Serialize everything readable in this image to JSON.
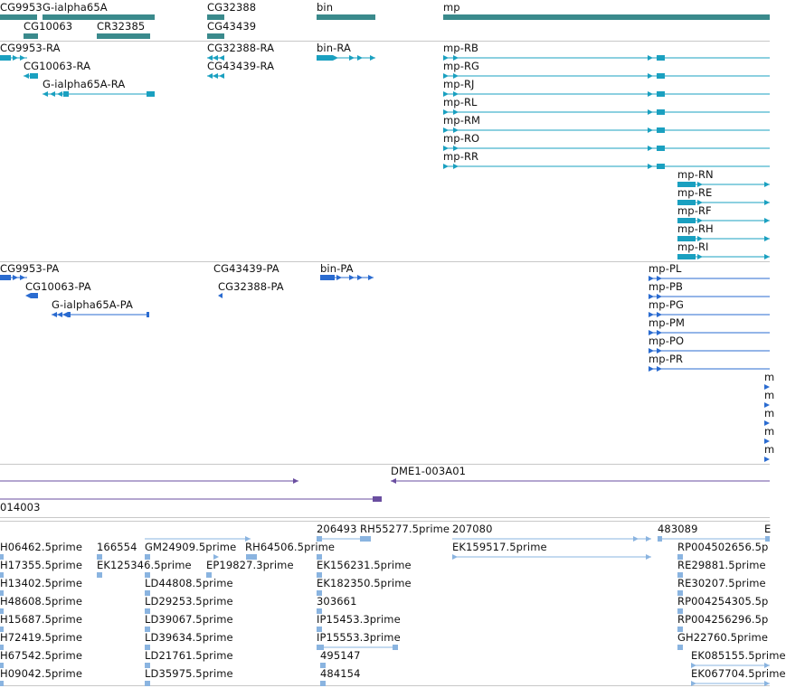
{
  "tracks": {
    "genes": {
      "color": "#3a8a8c",
      "labels": [
        "CG9953",
        "G-ialpha65A",
        "CG10063",
        "CR32385",
        "CG32388",
        "CG43439",
        "bin",
        "mp"
      ]
    },
    "transcripts": {
      "color": "#1aa0c0",
      "labels": [
        "CG9953-RA",
        "CG10063-RA",
        "G-ialpha65A-RA",
        "CG32388-RA",
        "CG43439-RA",
        "bin-RA",
        "mp-RB",
        "mp-RG",
        "mp-RJ",
        "mp-RL",
        "mp-RM",
        "mp-RO",
        "mp-RR",
        "mp-RN",
        "mp-RE",
        "mp-RF",
        "mp-RH",
        "mp-RI"
      ]
    },
    "proteins": {
      "color": "#2a6bd0",
      "labels": [
        "CG9953-PA",
        "CG10063-PA",
        "G-ialpha65A-PA",
        "CG43439-PA",
        "CG32388-PA",
        "bin-PA",
        "mp-PL",
        "mp-PB",
        "mp-PG",
        "mp-PM",
        "mp-PO",
        "mp-PR"
      ],
      "overflow_labels": [
        "m",
        "m",
        "m",
        "m",
        "m"
      ]
    },
    "clones": {
      "color": "#6a4ea0",
      "labels": [
        "DME1-003A01",
        "014003"
      ]
    },
    "ests": {
      "color": "#8ab4e0",
      "labels": [
        "206493",
        "RH55277.5prime",
        "207080",
        "483089",
        "E",
        "H06462.5prime",
        "166554",
        "GM24909.5prime",
        "RH64506.5prime",
        "EK159517.5prime",
        "RP004502656.5p",
        "H17355.5prime",
        "EK125346.5prime",
        "EP19827.3prime",
        "EK156231.5prime",
        "RE29881.5prime",
        "H13402.5prime",
        "LD44808.5prime",
        "EK182350.5prime",
        "RE30207.5prime",
        "H48608.5prime",
        "LD29253.5prime",
        "303661",
        "RP004254305.5p",
        "H15687.5prime",
        "LD39067.5prime",
        "IP15453.3prime",
        "RP004256296.5p",
        "H72419.5prime",
        "LD39634.5prime",
        "IP15553.3prime",
        "GH22760.5prime",
        "H67542.5prime",
        "LD21761.5prime",
        "495147",
        "EK085155.5prime",
        "H09042.5prime",
        "LD35975.5prime",
        "484154",
        "EK067704.5prime"
      ]
    }
  }
}
